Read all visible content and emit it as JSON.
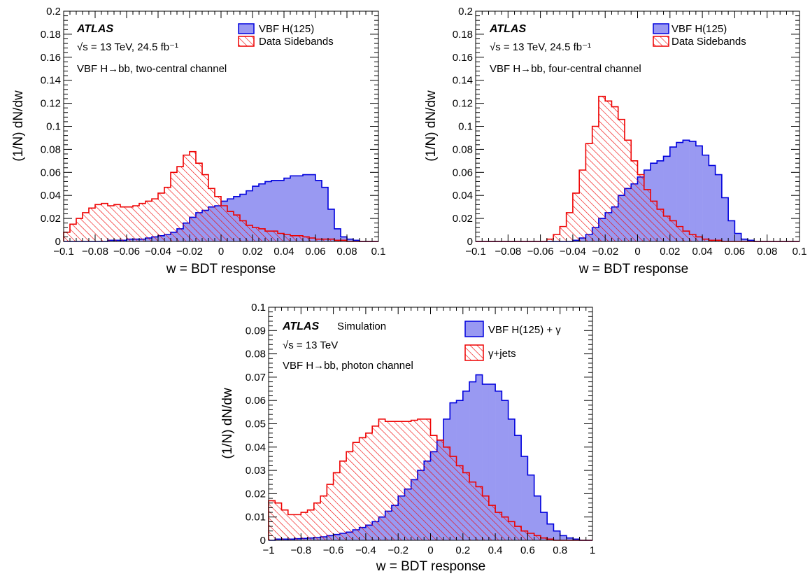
{
  "colors": {
    "signal_fill": "#9999f2",
    "signal_line": "#0000dd",
    "background_line": "#ee0000"
  },
  "chart_data": [
    {
      "type": "histogram",
      "xlabel": "w = BDT response",
      "ylabel": "(1/N) dN/dw",
      "xlim": [
        -0.1,
        0.1
      ],
      "ylim": [
        0,
        0.2
      ],
      "xticks": [
        "−0.1",
        "−0.08",
        "−0.06",
        "−0.04",
        "−0.02",
        "0",
        "0.02",
        "0.04",
        "0.06",
        "0.08",
        "0.1"
      ],
      "yticks": [
        "0",
        "0.02",
        "0.04",
        "0.06",
        "0.08",
        "0.1",
        "0.12",
        "0.14",
        "0.16",
        "0.18",
        "0.2"
      ],
      "annotations": {
        "atlas": "ATLAS",
        "tag": "",
        "energy": "√s = 13 TeV, 24.5 fb⁻¹",
        "channel": "VBF H→bb, two-central channel"
      },
      "series": [
        {
          "name": "VBF H(125)",
          "style": "filled",
          "bin_edges": [
            -0.1,
            -0.096,
            -0.092,
            -0.088,
            -0.084,
            -0.08,
            -0.076,
            -0.072,
            -0.068,
            -0.064,
            -0.06,
            -0.056,
            -0.052,
            -0.048,
            -0.044,
            -0.04,
            -0.036,
            -0.032,
            -0.028,
            -0.024,
            -0.02,
            -0.016,
            -0.012,
            -0.008,
            -0.004,
            0.0,
            0.004,
            0.008,
            0.012,
            0.016,
            0.02,
            0.024,
            0.028,
            0.032,
            0.036,
            0.04,
            0.044,
            0.048,
            0.052,
            0.056,
            0.06,
            0.064,
            0.068,
            0.072,
            0.076,
            0.08,
            0.084,
            0.088,
            0.092,
            0.096,
            0.1
          ],
          "values": [
            0.0,
            0.0,
            0.0,
            0.0,
            0.0,
            0.0,
            0.0,
            0.001,
            0.001,
            0.001,
            0.002,
            0.002,
            0.002,
            0.003,
            0.004,
            0.005,
            0.006,
            0.008,
            0.011,
            0.016,
            0.021,
            0.025,
            0.027,
            0.03,
            0.031,
            0.035,
            0.037,
            0.039,
            0.041,
            0.044,
            0.048,
            0.05,
            0.052,
            0.053,
            0.053,
            0.055,
            0.057,
            0.057,
            0.058,
            0.058,
            0.053,
            0.047,
            0.028,
            0.011,
            0.004,
            0.002,
            0.001,
            0.0,
            0.0,
            0.0
          ]
        },
        {
          "name": "Data Sidebands",
          "style": "hatched",
          "bin_edges": [
            -0.1,
            -0.096,
            -0.092,
            -0.088,
            -0.084,
            -0.08,
            -0.076,
            -0.072,
            -0.068,
            -0.064,
            -0.06,
            -0.056,
            -0.052,
            -0.048,
            -0.044,
            -0.04,
            -0.036,
            -0.032,
            -0.028,
            -0.024,
            -0.02,
            -0.016,
            -0.012,
            -0.008,
            -0.004,
            0.0,
            0.004,
            0.008,
            0.012,
            0.016,
            0.02,
            0.024,
            0.028,
            0.032,
            0.036,
            0.04,
            0.044,
            0.048,
            0.052,
            0.056,
            0.06,
            0.064,
            0.068,
            0.072,
            0.076,
            0.08,
            0.084,
            0.088,
            0.092,
            0.096,
            0.1
          ],
          "values": [
            0.008,
            0.015,
            0.02,
            0.025,
            0.029,
            0.032,
            0.033,
            0.031,
            0.032,
            0.03,
            0.03,
            0.031,
            0.033,
            0.035,
            0.037,
            0.042,
            0.047,
            0.06,
            0.065,
            0.075,
            0.078,
            0.068,
            0.058,
            0.046,
            0.039,
            0.031,
            0.026,
            0.023,
            0.018,
            0.014,
            0.012,
            0.011,
            0.009,
            0.009,
            0.007,
            0.006,
            0.005,
            0.005,
            0.004,
            0.003,
            0.002,
            0.002,
            0.002,
            0.001,
            0.001,
            0.0,
            0.0,
            0.0,
            0.0,
            0.0
          ]
        }
      ]
    },
    {
      "type": "histogram",
      "xlabel": "w = BDT response",
      "ylabel": "(1/N) dN/dw",
      "xlim": [
        -0.1,
        0.1
      ],
      "ylim": [
        0,
        0.2
      ],
      "xticks": [
        "−0.1",
        "−0.08",
        "−0.06",
        "−0.04",
        "−0.02",
        "0",
        "0.02",
        "0.04",
        "0.06",
        "0.08",
        "0.1"
      ],
      "yticks": [
        "0",
        "0.02",
        "0.04",
        "0.06",
        "0.08",
        "0.1",
        "0.12",
        "0.14",
        "0.16",
        "0.18",
        "0.2"
      ],
      "annotations": {
        "atlas": "ATLAS",
        "tag": "",
        "energy": "√s = 13 TeV, 24.5 fb⁻¹",
        "channel": "VBF H→bb, four-central channel"
      },
      "series": [
        {
          "name": "VBF H(125)",
          "style": "filled",
          "bin_edges": [
            -0.1,
            -0.096,
            -0.092,
            -0.088,
            -0.084,
            -0.08,
            -0.076,
            -0.072,
            -0.068,
            -0.064,
            -0.06,
            -0.056,
            -0.052,
            -0.048,
            -0.044,
            -0.04,
            -0.036,
            -0.032,
            -0.028,
            -0.024,
            -0.02,
            -0.016,
            -0.012,
            -0.008,
            -0.004,
            0.0,
            0.004,
            0.008,
            0.012,
            0.016,
            0.02,
            0.024,
            0.028,
            0.032,
            0.036,
            0.04,
            0.044,
            0.048,
            0.052,
            0.056,
            0.06,
            0.064,
            0.068,
            0.072,
            0.076,
            0.08,
            0.084,
            0.088,
            0.092,
            0.096,
            0.1
          ],
          "values": [
            0.0,
            0.0,
            0.0,
            0.0,
            0.0,
            0.0,
            0.0,
            0.0,
            0.0,
            0.0,
            0.0,
            0.0,
            0.0,
            0.0,
            0.0,
            0.001,
            0.003,
            0.006,
            0.012,
            0.02,
            0.025,
            0.03,
            0.04,
            0.046,
            0.05,
            0.056,
            0.062,
            0.068,
            0.07,
            0.074,
            0.082,
            0.086,
            0.088,
            0.087,
            0.083,
            0.075,
            0.066,
            0.058,
            0.038,
            0.018,
            0.007,
            0.002,
            0.001,
            0.0,
            0.0,
            0.0,
            0.0,
            0.0,
            0.0,
            0.0
          ]
        },
        {
          "name": "Data Sidebands",
          "style": "hatched",
          "bin_edges": [
            -0.1,
            -0.096,
            -0.092,
            -0.088,
            -0.084,
            -0.08,
            -0.076,
            -0.072,
            -0.068,
            -0.064,
            -0.06,
            -0.056,
            -0.052,
            -0.048,
            -0.044,
            -0.04,
            -0.036,
            -0.032,
            -0.028,
            -0.024,
            -0.02,
            -0.016,
            -0.012,
            -0.008,
            -0.004,
            0.0,
            0.004,
            0.008,
            0.012,
            0.016,
            0.02,
            0.024,
            0.028,
            0.032,
            0.036,
            0.04,
            0.044,
            0.048,
            0.052,
            0.056,
            0.06,
            0.064,
            0.068,
            0.072,
            0.076,
            0.08,
            0.084,
            0.088,
            0.092,
            0.096,
            0.1
          ],
          "values": [
            0.0,
            0.0,
            0.0,
            0.0,
            0.0,
            0.0,
            0.0,
            0.0,
            0.0,
            0.0,
            0.0,
            0.002,
            0.006,
            0.013,
            0.025,
            0.042,
            0.062,
            0.085,
            0.1,
            0.126,
            0.122,
            0.117,
            0.106,
            0.088,
            0.07,
            0.058,
            0.045,
            0.035,
            0.028,
            0.022,
            0.018,
            0.013,
            0.009,
            0.006,
            0.004,
            0.002,
            0.001,
            0.001,
            0.0,
            0.0,
            0.0,
            0.0,
            0.0,
            0.0,
            0.0,
            0.0,
            0.0,
            0.0,
            0.0,
            0.0
          ]
        }
      ]
    },
    {
      "type": "histogram",
      "xlabel": "w = BDT response",
      "ylabel": "(1/N) dN/dw",
      "xlim": [
        -1,
        1
      ],
      "ylim": [
        0,
        0.1
      ],
      "xticks": [
        "−1",
        "−0.8",
        "−0.6",
        "−0.4",
        "−0.2",
        "0",
        "0.2",
        "0.4",
        "0.6",
        "0.8",
        "1"
      ],
      "yticks": [
        "0",
        "0.01",
        "0.02",
        "0.03",
        "0.04",
        "0.05",
        "0.06",
        "0.07",
        "0.08",
        "0.09",
        "0.1"
      ],
      "annotations": {
        "atlas": "ATLAS",
        "tag": "Simulation",
        "energy": "√s = 13 TeV",
        "channel": "VBF H→bb, photon channel"
      },
      "series": [
        {
          "name": "VBF H(125) + γ",
          "style": "filled",
          "bin_edges": [
            -1.0,
            -0.96,
            -0.92,
            -0.88,
            -0.84,
            -0.8,
            -0.76,
            -0.72,
            -0.68,
            -0.64,
            -0.6,
            -0.56,
            -0.52,
            -0.48,
            -0.44,
            -0.4,
            -0.36,
            -0.32,
            -0.28,
            -0.24,
            -0.2,
            -0.16,
            -0.12,
            -0.08,
            -0.04,
            0.0,
            0.04,
            0.08,
            0.12,
            0.16,
            0.2,
            0.24,
            0.28,
            0.32,
            0.36,
            0.4,
            0.44,
            0.48,
            0.52,
            0.56,
            0.6,
            0.64,
            0.68,
            0.72,
            0.76,
            0.8,
            0.84,
            0.88,
            0.92,
            0.96,
            1.0
          ],
          "values": [
            0.0,
            0.0005,
            0.0005,
            0.0005,
            0.0007,
            0.0008,
            0.001,
            0.0012,
            0.0015,
            0.002,
            0.0025,
            0.003,
            0.0035,
            0.0045,
            0.0055,
            0.0065,
            0.008,
            0.01,
            0.0125,
            0.015,
            0.019,
            0.022,
            0.026,
            0.03,
            0.034,
            0.038,
            0.043,
            0.052,
            0.059,
            0.06,
            0.064,
            0.068,
            0.071,
            0.067,
            0.067,
            0.064,
            0.06,
            0.052,
            0.045,
            0.036,
            0.028,
            0.019,
            0.012,
            0.007,
            0.004,
            0.002,
            0.001,
            0.0005,
            0.0,
            0.0
          ]
        },
        {
          "name": "γ+jets",
          "style": "hatched",
          "bin_edges": [
            -1.0,
            -0.96,
            -0.92,
            -0.88,
            -0.84,
            -0.8,
            -0.76,
            -0.72,
            -0.68,
            -0.64,
            -0.6,
            -0.56,
            -0.52,
            -0.48,
            -0.44,
            -0.4,
            -0.36,
            -0.32,
            -0.28,
            -0.24,
            -0.2,
            -0.16,
            -0.12,
            -0.08,
            -0.04,
            0.0,
            0.04,
            0.08,
            0.12,
            0.16,
            0.2,
            0.24,
            0.28,
            0.32,
            0.36,
            0.4,
            0.44,
            0.48,
            0.52,
            0.56,
            0.6,
            0.64,
            0.68,
            0.72,
            0.76,
            0.8,
            0.84,
            0.88,
            0.92,
            0.96,
            1.0
          ],
          "values": [
            0.017,
            0.016,
            0.013,
            0.011,
            0.011,
            0.012,
            0.013,
            0.016,
            0.019,
            0.024,
            0.029,
            0.034,
            0.038,
            0.042,
            0.044,
            0.046,
            0.049,
            0.052,
            0.051,
            0.051,
            0.051,
            0.051,
            0.0515,
            0.052,
            0.052,
            0.045,
            0.043,
            0.04,
            0.036,
            0.032,
            0.029,
            0.025,
            0.023,
            0.019,
            0.015,
            0.012,
            0.01,
            0.008,
            0.006,
            0.004,
            0.003,
            0.002,
            0.001,
            0.0005,
            0.0,
            0.0,
            0.0,
            0.0,
            0.0,
            0.0
          ]
        }
      ]
    }
  ]
}
